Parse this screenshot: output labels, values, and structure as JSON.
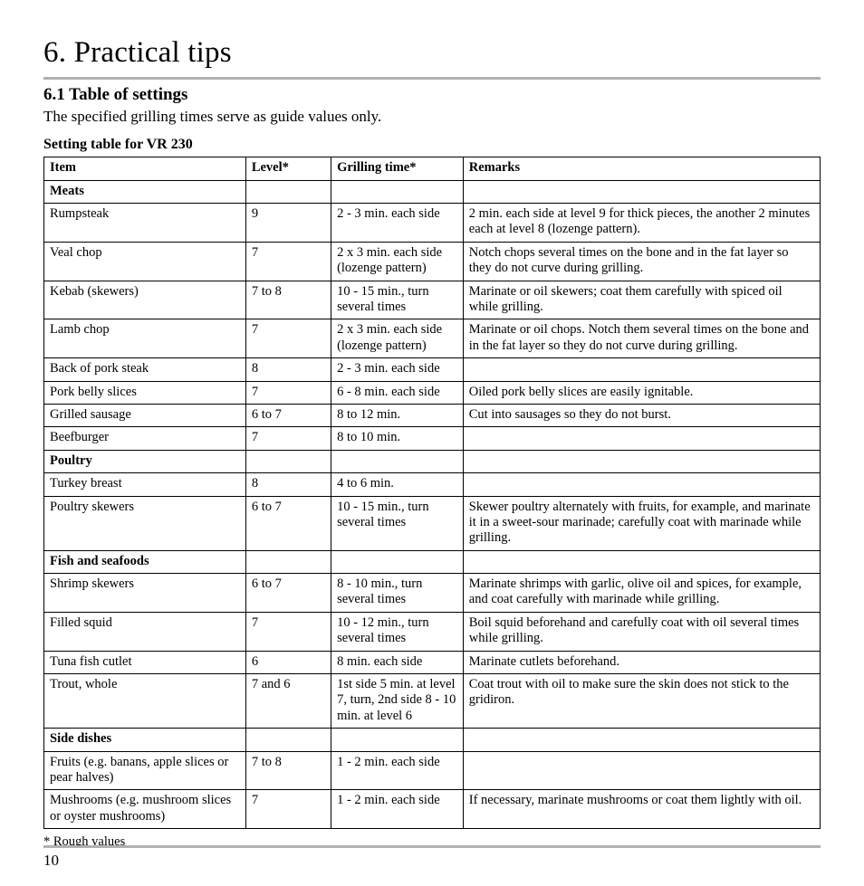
{
  "chapter": {
    "number": "6.",
    "title": "Practical tips"
  },
  "section": {
    "number": "6.1",
    "title": "Table of settings",
    "intro": "The specified grilling times serve as guide values only."
  },
  "table": {
    "caption": "Setting table for VR 230",
    "headers": {
      "item": "Item",
      "level": "Level*",
      "time": "Grilling time*",
      "remarks": "Remarks"
    },
    "groups": [
      {
        "category": "Meats",
        "rows": [
          {
            "item": "Rumpsteak",
            "level": "9",
            "time": "2 - 3 min. each side",
            "remarks": "2 min. each side at level 9 for thick pieces, the another 2 minutes each at level 8 (lozenge pattern)."
          },
          {
            "item": "Veal chop",
            "level": "7",
            "time": "2 x 3 min. each side (lozenge pattern)",
            "remarks": "Notch chops several times on the bone and in the fat layer so they do not curve during grilling."
          },
          {
            "item": "Kebab (skewers)",
            "level": "7 to 8",
            "time": "10 - 15 min., turn several times",
            "remarks": "Marinate or oil skewers; coat them carefully with spiced oil while grilling."
          },
          {
            "item": "Lamb chop",
            "level": "7",
            "time": "2 x 3 min. each side (lozenge pattern)",
            "remarks": "Marinate or oil chops. Notch them several times on the bone and in the fat layer so they do not curve during grilling."
          },
          {
            "item": "Back of pork steak",
            "level": "8",
            "time": "2 - 3 min. each side",
            "remarks": ""
          },
          {
            "item": "Pork belly slices",
            "level": "7",
            "time": "6 - 8 min. each side",
            "remarks": "Oiled pork belly slices are easily ignitable."
          },
          {
            "item": "Grilled sausage",
            "level": "6 to 7",
            "time": "8 to 12 min.",
            "remarks": "Cut into sausages so they do not burst."
          },
          {
            "item": "Beefburger",
            "level": "7",
            "time": "8 to 10 min.",
            "remarks": ""
          }
        ]
      },
      {
        "category": "Poultry",
        "rows": [
          {
            "item": "Turkey breast",
            "level": "8",
            "time": "4 to 6 min.",
            "remarks": ""
          },
          {
            "item": "Poultry skewers",
            "level": "6 to 7",
            "time": "10 - 15 min., turn several times",
            "remarks": "Skewer poultry alternately with fruits, for example, and marinate it in a sweet-sour marinade; carefully coat with marinade while grilling."
          }
        ]
      },
      {
        "category": "Fish and seafoods",
        "rows": [
          {
            "item": "Shrimp skewers",
            "level": "6 to 7",
            "time": "8 - 10 min., turn several times",
            "remarks": "Marinate shrimps with garlic, olive oil and spices, for example, and coat carefully with marinade while grilling."
          },
          {
            "item": "Filled squid",
            "level": "7",
            "time": "10 - 12 min., turn several times",
            "remarks": "Boil squid beforehand and carefully coat with oil several times while grilling."
          },
          {
            "item": "Tuna fish cutlet",
            "level": "6",
            "time": "8 min. each side",
            "remarks": "Marinate cutlets beforehand."
          },
          {
            "item": "Trout, whole",
            "level": "7 and 6",
            "time": "1st side 5 min. at level 7, turn, 2nd side 8 - 10 min. at level 6",
            "remarks": "Coat trout with oil to make sure the skin does not stick to the gridiron."
          }
        ]
      },
      {
        "category": "Side dishes",
        "rows": [
          {
            "item": "Fruits (e.g. banans, apple slices or pear halves)",
            "level": "7 to 8",
            "time": "1 - 2 min. each side",
            "remarks": ""
          },
          {
            "item": "Mushrooms (e.g. mushroom slices or oyster mushrooms)",
            "level": "7",
            "time": "1 - 2 min. each side",
            "remarks": "If necessary, marinate mushrooms or coat them lightly with oil."
          }
        ]
      }
    ],
    "footnote": "* Rough values"
  },
  "page_number": "10"
}
